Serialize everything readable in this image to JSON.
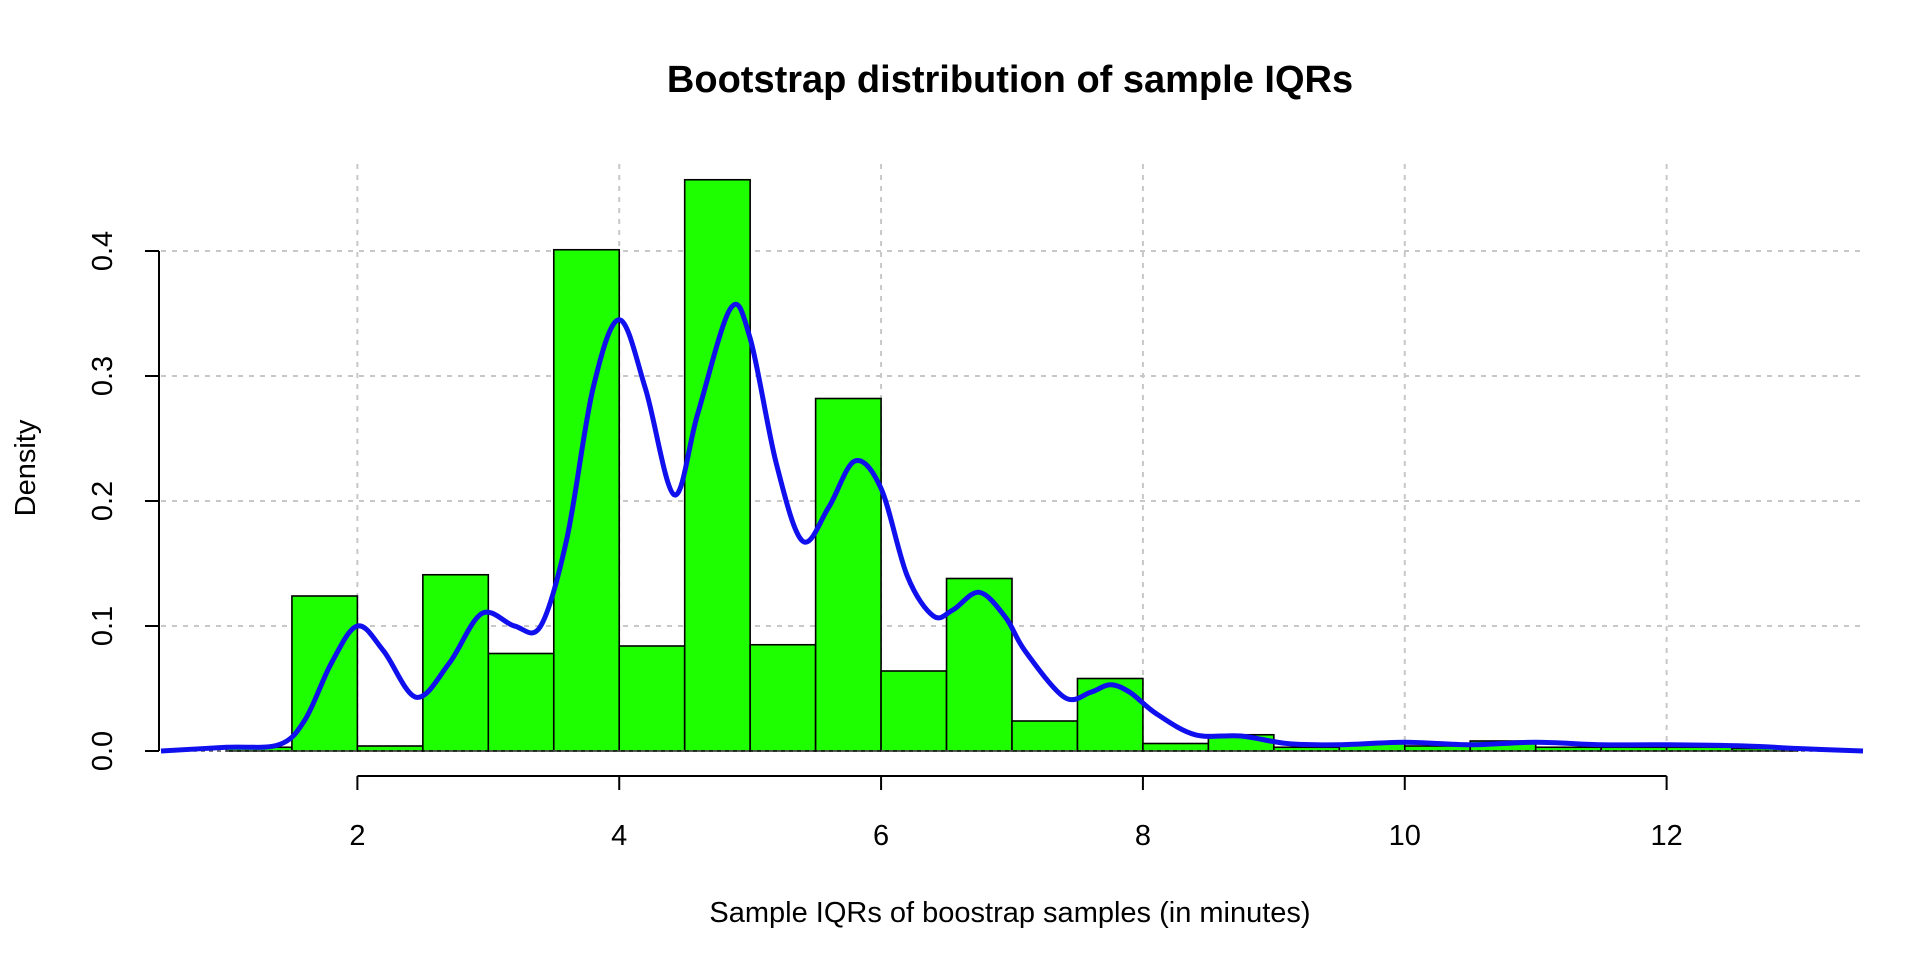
{
  "chart_data": {
    "type": "bar",
    "title": "Bootstrap distribution of sample IQRs",
    "xlabel": "Sample IQRs of boostrap samples (in minutes)",
    "ylabel": "Density",
    "xlim": [
      0.5,
      13.5
    ],
    "ylim": [
      0,
      0.46
    ],
    "x_ticks": [
      "2",
      "4",
      "6",
      "8",
      "10",
      "12"
    ],
    "y_ticks": [
      "0.0",
      "0.1",
      "0.2",
      "0.3",
      "0.4"
    ],
    "grid": true,
    "bar_width": 0.5,
    "bins": [
      {
        "x0": 1.0,
        "x1": 1.5,
        "density": 0.003
      },
      {
        "x0": 1.5,
        "x1": 2.0,
        "density": 0.124
      },
      {
        "x0": 2.0,
        "x1": 2.5,
        "density": 0.004
      },
      {
        "x0": 2.5,
        "x1": 3.0,
        "density": 0.141
      },
      {
        "x0": 3.0,
        "x1": 3.5,
        "density": 0.078
      },
      {
        "x0": 3.5,
        "x1": 4.0,
        "density": 0.401
      },
      {
        "x0": 4.0,
        "x1": 4.5,
        "density": 0.084
      },
      {
        "x0": 4.5,
        "x1": 5.0,
        "density": 0.457
      },
      {
        "x0": 5.0,
        "x1": 5.5,
        "density": 0.085
      },
      {
        "x0": 5.5,
        "x1": 6.0,
        "density": 0.282
      },
      {
        "x0": 6.0,
        "x1": 6.5,
        "density": 0.064
      },
      {
        "x0": 6.5,
        "x1": 7.0,
        "density": 0.138
      },
      {
        "x0": 7.0,
        "x1": 7.5,
        "density": 0.024
      },
      {
        "x0": 7.5,
        "x1": 8.0,
        "density": 0.058
      },
      {
        "x0": 8.0,
        "x1": 8.5,
        "density": 0.006
      },
      {
        "x0": 8.5,
        "x1": 9.0,
        "density": 0.013
      },
      {
        "x0": 9.0,
        "x1": 9.5,
        "density": 0.003
      },
      {
        "x0": 9.5,
        "x1": 10.0,
        "density": 0.006
      },
      {
        "x0": 10.0,
        "x1": 10.5,
        "density": 0.004
      },
      {
        "x0": 10.5,
        "x1": 11.0,
        "density": 0.008
      },
      {
        "x0": 11.0,
        "x1": 11.5,
        "density": 0.003
      },
      {
        "x0": 11.5,
        "x1": 12.0,
        "density": 0.003
      },
      {
        "x0": 12.0,
        "x1": 12.5,
        "density": 0.003
      },
      {
        "x0": 12.5,
        "x1": 13.0,
        "density": 0.002
      }
    ],
    "density_curve": {
      "x": [
        0.5,
        1.0,
        1.4,
        1.6,
        1.8,
        2.0,
        2.2,
        2.45,
        2.7,
        2.95,
        3.2,
        3.4,
        3.6,
        3.8,
        4.0,
        4.2,
        4.42,
        4.6,
        4.85,
        5.0,
        5.2,
        5.4,
        5.6,
        5.8,
        6.0,
        6.2,
        6.4,
        6.55,
        6.75,
        6.95,
        7.1,
        7.4,
        7.6,
        7.75,
        7.9,
        8.1,
        8.4,
        8.75,
        9.1,
        9.5,
        10.0,
        10.5,
        11.0,
        11.5,
        12.0,
        12.6,
        13.0,
        13.5
      ],
      "y": [
        0.0,
        0.003,
        0.005,
        0.025,
        0.07,
        0.1,
        0.08,
        0.043,
        0.07,
        0.11,
        0.1,
        0.1,
        0.17,
        0.29,
        0.345,
        0.29,
        0.205,
        0.27,
        0.354,
        0.33,
        0.23,
        0.168,
        0.195,
        0.232,
        0.21,
        0.14,
        0.108,
        0.113,
        0.127,
        0.107,
        0.08,
        0.043,
        0.047,
        0.053,
        0.047,
        0.03,
        0.013,
        0.012,
        0.006,
        0.005,
        0.007,
        0.005,
        0.007,
        0.005,
        0.005,
        0.004,
        0.002,
        0.0
      ]
    },
    "colors": {
      "bar_fill": "#1eff00",
      "bar_stroke": "#000000",
      "curve": "#1010ee",
      "grid": "#c8c8c8"
    }
  }
}
